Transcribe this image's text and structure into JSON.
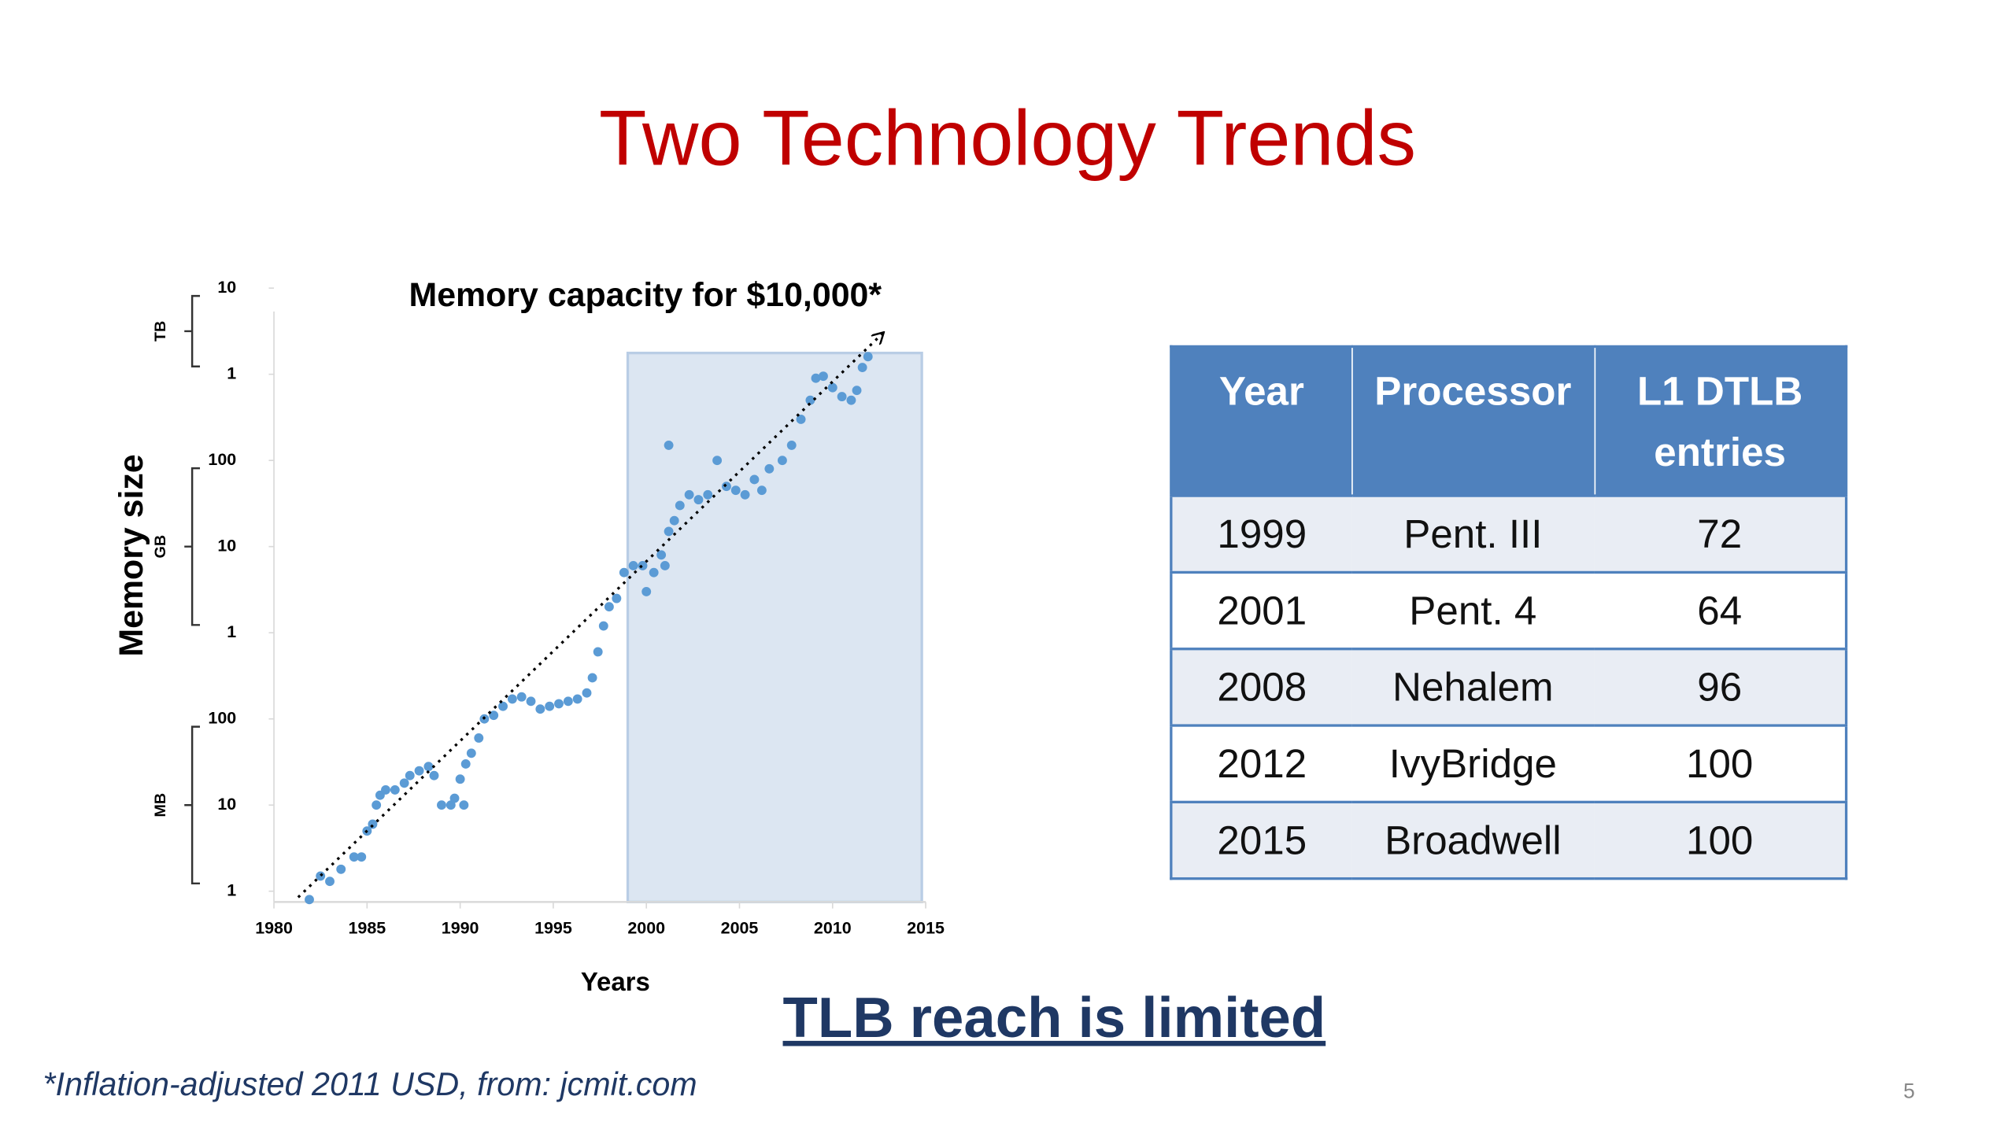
{
  "title": "Two Technology Trends",
  "chart_data": {
    "type": "scatter",
    "title": "Memory capacity for $10,000*",
    "x_label": "Years",
    "y_label": "Memory size",
    "y_units": [
      "MB",
      "GB",
      "TB"
    ],
    "log_y": true,
    "color": "#5b9bd5",
    "xlim": [
      1980,
      2015
    ],
    "xticks": [
      1980,
      1985,
      1990,
      1995,
      2000,
      2005,
      2010,
      2015
    ],
    "ylim": [
      0.75,
      10000000
    ],
    "yticks": [
      1,
      10,
      100,
      {
        "value": 1000,
        "label": "1"
      },
      {
        "value": 10000,
        "label": "10"
      },
      {
        "value": 100000,
        "label": "100"
      },
      {
        "value": 1000000,
        "label": "1"
      },
      {
        "value": 10000000,
        "label": "10"
      }
    ],
    "highlight": [
      1999,
      2015
    ],
    "trend": {
      "x": [
        1981.3,
        2012.7
      ],
      "values": [
        0.85,
        3000000
      ]
    },
    "x": [
      1981.9,
      1982.5,
      1983,
      1983.6,
      1984.3,
      1984.7,
      1985,
      1985.3,
      1985.5,
      1985.7,
      1986,
      1986.5,
      1987,
      1987.3,
      1987.8,
      1988.3,
      1988.6,
      1989,
      1989.5,
      1989.7,
      1990,
      1990.2,
      1990.3,
      1990.6,
      1991,
      1991.3,
      1991.8,
      1992.3,
      1992.8,
      1993.3,
      1993.8,
      1994.3,
      1994.8,
      1995.3,
      1995.8,
      1996.3,
      1996.8,
      1997.1,
      1997.4,
      1997.7,
      1998,
      1998.4,
      1998.8,
      1999.3,
      1999.8,
      2000,
      2000.4,
      2000.8,
      2001,
      2001.2,
      2001.5,
      2001.8,
      2001.2,
      2002.3,
      2002.8,
      2003.3,
      2003.8,
      2004.3,
      2004.8,
      2005.3,
      2005.8,
      2006.2,
      2006.6,
      2007.3,
      2007.8,
      2008.3,
      2008.8,
      2009.1,
      2009.5,
      2010,
      2010.5,
      2011,
      2011.3,
      2011.6,
      2011.9
    ],
    "values": [
      0.8,
      1.5,
      1.3,
      1.8,
      2.5,
      2.5,
      5,
      6,
      10,
      13,
      15,
      15,
      18,
      22,
      25,
      28,
      22,
      10,
      10,
      12,
      20,
      10,
      30,
      40,
      60,
      100,
      110,
      140,
      170,
      180,
      160,
      130,
      140,
      150,
      160,
      170,
      200,
      300,
      600,
      1200,
      2000,
      2500,
      5000,
      6000,
      6000,
      3000,
      5000,
      8000,
      6000,
      15000,
      20000,
      30000,
      150000,
      40000,
      35000,
      40000,
      100000,
      50000,
      45000,
      40000,
      60000,
      45000,
      80000,
      100000,
      150000,
      300000,
      500000,
      900000,
      950000,
      700000,
      550000,
      500000,
      650000,
      1200000,
      1600000
    ]
  },
  "table": {
    "header": [
      "Year",
      "Processor",
      "L1 DTLB entries"
    ],
    "rows": [
      [
        1999,
        "Pent. III",
        72
      ],
      [
        2001,
        "Pent. 4",
        64
      ],
      [
        2008,
        "Nehalem",
        96
      ],
      [
        2012,
        "IvyBridge",
        100
      ],
      [
        2015,
        "Broadwell",
        100
      ]
    ]
  },
  "conclusion": "TLB reach is limited",
  "footnote": "*Inflation-adjusted 2011 USD, from: jcmit.com",
  "page_number": 5
}
